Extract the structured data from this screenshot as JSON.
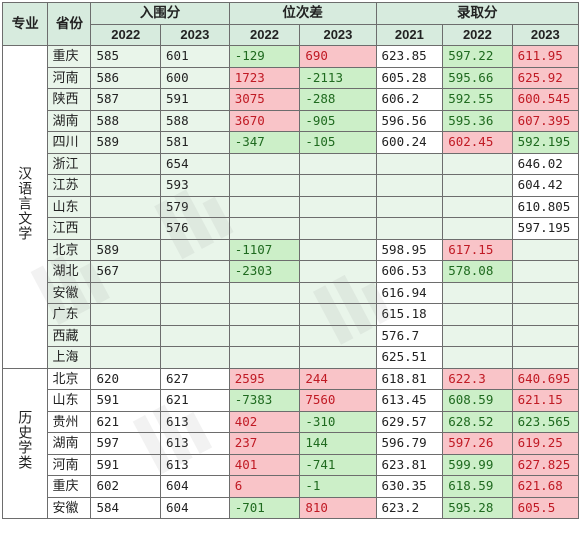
{
  "headers": {
    "major": "专业",
    "province": "省份",
    "entry_score": "入围分",
    "rank_diff": "位次差",
    "admit_score": "录取分",
    "years_2": [
      "2022",
      "2023"
    ],
    "years_3": [
      "2021",
      "2022",
      "2023"
    ]
  },
  "groups": [
    {
      "major": "汉语言文学",
      "rows": [
        {
          "province": "重庆",
          "e22": "585",
          "e23": "601",
          "r22": "-129",
          "r22s": "green",
          "r23": "690",
          "r23s": "red",
          "a21": "623.85",
          "a21s": "plain",
          "a22": "597.22",
          "a22s": "green",
          "a23": "611.95",
          "a23s": "red"
        },
        {
          "province": "河南",
          "e22": "586",
          "e23": "600",
          "r22": "1723",
          "r22s": "red",
          "r23": "-2113",
          "r23s": "green",
          "a21": "605.28",
          "a21s": "plain",
          "a22": "595.66",
          "a22s": "green",
          "a23": "625.92",
          "a23s": "red"
        },
        {
          "province": "陕西",
          "e22": "587",
          "e23": "591",
          "r22": "3075",
          "r22s": "red",
          "r23": "-288",
          "r23s": "green",
          "a21": "606.2",
          "a21s": "plain",
          "a22": "592.55",
          "a22s": "green",
          "a23": "600.545",
          "a23s": "red"
        },
        {
          "province": "湖南",
          "e22": "588",
          "e23": "588",
          "r22": "3670",
          "r22s": "red",
          "r23": "-905",
          "r23s": "green",
          "a21": "596.56",
          "a21s": "plain",
          "a22": "595.36",
          "a22s": "green",
          "a23": "607.395",
          "a23s": "red"
        },
        {
          "province": "四川",
          "e22": "589",
          "e23": "581",
          "r22": "-347",
          "r22s": "green",
          "r23": "-105",
          "r23s": "green",
          "a21": "600.24",
          "a21s": "plain",
          "a22": "602.45",
          "a22s": "red",
          "a23": "592.195",
          "a23s": "green"
        },
        {
          "province": "浙江",
          "e22": "",
          "e23": "654",
          "r22": "",
          "r22s": "",
          "r23": "",
          "r23s": "",
          "a21": "",
          "a21s": "",
          "a22": "",
          "a22s": "",
          "a23": "646.02",
          "a23s": "plain"
        },
        {
          "province": "江苏",
          "e22": "",
          "e23": "593",
          "r22": "",
          "r22s": "",
          "r23": "",
          "r23s": "",
          "a21": "",
          "a21s": "",
          "a22": "",
          "a22s": "",
          "a23": "604.42",
          "a23s": "plain"
        },
        {
          "province": "山东",
          "e22": "",
          "e23": "579",
          "r22": "",
          "r22s": "",
          "r23": "",
          "r23s": "",
          "a21": "",
          "a21s": "",
          "a22": "",
          "a22s": "",
          "a23": "610.805",
          "a23s": "plain"
        },
        {
          "province": "江西",
          "e22": "",
          "e23": "576",
          "r22": "",
          "r22s": "",
          "r23": "",
          "r23s": "",
          "a21": "",
          "a21s": "",
          "a22": "",
          "a22s": "",
          "a23": "597.195",
          "a23s": "plain"
        },
        {
          "province": "北京",
          "e22": "589",
          "e23": "",
          "r22": "-1107",
          "r22s": "green",
          "r23": "",
          "r23s": "",
          "a21": "598.95",
          "a21s": "plain",
          "a22": "617.15",
          "a22s": "red",
          "a23": "",
          "a23s": ""
        },
        {
          "province": "湖北",
          "e22": "567",
          "e23": "",
          "r22": "-2303",
          "r22s": "green",
          "r23": "",
          "r23s": "",
          "a21": "606.53",
          "a21s": "plain",
          "a22": "578.08",
          "a22s": "green",
          "a23": "",
          "a23s": ""
        },
        {
          "province": "安徽",
          "e22": "",
          "e23": "",
          "r22": "",
          "r22s": "",
          "r23": "",
          "r23s": "",
          "a21": "616.94",
          "a21s": "plain",
          "a22": "",
          "a22s": "",
          "a23": "",
          "a23s": ""
        },
        {
          "province": "广东",
          "e22": "",
          "e23": "",
          "r22": "",
          "r22s": "",
          "r23": "",
          "r23s": "",
          "a21": "615.18",
          "a21s": "plain",
          "a22": "",
          "a22s": "",
          "a23": "",
          "a23s": ""
        },
        {
          "province": "西藏",
          "e22": "",
          "e23": "",
          "r22": "",
          "r22s": "",
          "r23": "",
          "r23s": "",
          "a21": "576.7",
          "a21s": "plain",
          "a22": "",
          "a22s": "",
          "a23": "",
          "a23s": ""
        },
        {
          "province": "上海",
          "e22": "",
          "e23": "",
          "r22": "",
          "r22s": "",
          "r23": "",
          "r23s": "",
          "a21": "625.51",
          "a21s": "plain",
          "a22": "",
          "a22s": "",
          "a23": "",
          "a23s": ""
        }
      ]
    },
    {
      "major": "历史学类",
      "rows": [
        {
          "province": "北京",
          "e22": "620",
          "e23": "627",
          "r22": "2595",
          "r22s": "red",
          "r23": "244",
          "r23s": "red",
          "a21": "618.81",
          "a21s": "plain",
          "a22": "622.3",
          "a22s": "red",
          "a23": "640.695",
          "a23s": "red"
        },
        {
          "province": "山东",
          "e22": "591",
          "e23": "621",
          "r22": "-7383",
          "r22s": "green",
          "r23": "7560",
          "r23s": "red",
          "a21": "613.45",
          "a21s": "plain",
          "a22": "608.59",
          "a22s": "green",
          "a23": "621.15",
          "a23s": "red"
        },
        {
          "province": "贵州",
          "e22": "621",
          "e23": "613",
          "r22": "402",
          "r22s": "red",
          "r23": "-310",
          "r23s": "green",
          "a21": "629.57",
          "a21s": "plain",
          "a22": "628.52",
          "a22s": "green",
          "a23": "623.565",
          "a23s": "green"
        },
        {
          "province": "湖南",
          "e22": "597",
          "e23": "613",
          "r22": "237",
          "r22s": "red",
          "r23": "144",
          "r23s": "green",
          "a21": "596.79",
          "a21s": "plain",
          "a22": "597.26",
          "a22s": "red",
          "a23": "619.25",
          "a23s": "red"
        },
        {
          "province": "河南",
          "e22": "591",
          "e23": "613",
          "r22": "401",
          "r22s": "red",
          "r23": "-741",
          "r23s": "green",
          "a21": "623.81",
          "a21s": "plain",
          "a22": "599.99",
          "a22s": "green",
          "a23": "627.825",
          "a23s": "red"
        },
        {
          "province": "重庆",
          "e22": "602",
          "e23": "604",
          "r22": "6",
          "r22s": "red",
          "r23": "-1",
          "r23s": "green",
          "a21": "630.35",
          "a21s": "plain",
          "a22": "618.59",
          "a22s": "green",
          "a23": "621.68",
          "a23s": "red"
        },
        {
          "province": "安徽",
          "e22": "584",
          "e23": "604",
          "r22": "-701",
          "r22s": "green",
          "r23": "810",
          "r23s": "red",
          "a21": "623.2",
          "a21s": "plain",
          "a22": "595.28",
          "a22s": "green",
          "a23": "605.5",
          "a23s": "red"
        }
      ]
    }
  ]
}
